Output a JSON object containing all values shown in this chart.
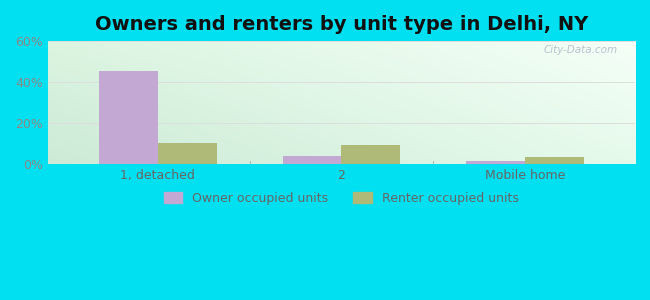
{
  "title": "Owners and renters by unit type in Delhi, NY",
  "categories": [
    "1, detached",
    "2",
    "Mobile home"
  ],
  "owner_values": [
    45.5,
    4.0,
    1.5
  ],
  "renter_values": [
    10.5,
    9.5,
    3.5
  ],
  "owner_color": "#c4a8d4",
  "renter_color": "#b0ba78",
  "ylim": [
    0,
    60
  ],
  "yticks": [
    0,
    20,
    40,
    60
  ],
  "ytick_labels": [
    "0%",
    "20%",
    "40%",
    "60%"
  ],
  "legend_owner": "Owner occupied units",
  "legend_renter": "Renter occupied units",
  "outer_bg": "#00e0f0",
  "bar_width": 0.32,
  "title_fontsize": 14,
  "watermark": "City-Data.com",
  "grid_color": "#dddddd",
  "tick_color": "#888888",
  "label_color": "#666666"
}
